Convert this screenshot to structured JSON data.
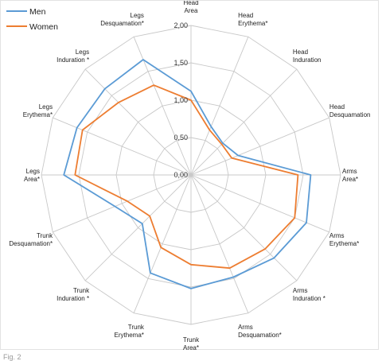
{
  "chart_data": {
    "type": "radar",
    "axes": [
      "Head Area",
      "Head Erythema*",
      "Head Induration",
      "Head Desquamation",
      "Arms Area*",
      "Arms Erythema*",
      "Arms Induration *",
      "Arms Desquamation*",
      "Trunk Area*",
      "Trunk Erythema*",
      "Trunk Induration *",
      "Trunk Desquamation*",
      "Legs Area*",
      "Legs Erythema*",
      "Legs Induration *",
      "Legs Desquamation*"
    ],
    "axis_label_lines": [
      [
        "Head",
        "Area"
      ],
      [
        "Head",
        "Erythema*"
      ],
      [
        "Head",
        "Induration"
      ],
      [
        "Head",
        "Desquamation"
      ],
      [
        "Arms",
        "Area*"
      ],
      [
        "Arms",
        "Erythema*"
      ],
      [
        "Arms",
        "Induration *"
      ],
      [
        "Arms",
        "Desquamation*"
      ],
      [
        "Trunk",
        "Area*"
      ],
      [
        "Trunk",
        "Erythema*"
      ],
      [
        "Trunk",
        "Induration *"
      ],
      [
        "Trunk",
        "Desquamation*"
      ],
      [
        "Legs",
        "Area*"
      ],
      [
        "Legs",
        "Erythema*"
      ],
      [
        "Legs",
        "Induration *"
      ],
      [
        "Legs",
        "Desquamation*"
      ]
    ],
    "ticks": [
      "0,00",
      "0,50",
      "1,00",
      "1,50",
      "2,00"
    ],
    "tick_values": [
      0,
      0.5,
      1.0,
      1.5,
      2.0
    ],
    "rmax": 2.0,
    "series": [
      {
        "name": "Men",
        "color": "#5b9bd5",
        "values": [
          1.12,
          0.7,
          0.6,
          0.68,
          1.6,
          1.67,
          1.57,
          1.48,
          1.52,
          1.42,
          0.92,
          1.1,
          1.7,
          1.65,
          1.63,
          1.67
        ]
      },
      {
        "name": "Women",
        "color": "#ed7d31",
        "values": [
          1.0,
          0.65,
          0.58,
          0.59,
          1.43,
          1.5,
          1.4,
          1.35,
          1.2,
          1.05,
          0.78,
          0.92,
          1.55,
          1.57,
          1.37,
          1.3
        ]
      }
    ],
    "legend_position": "top-left",
    "grid": true
  },
  "caption": "Fig. 2"
}
